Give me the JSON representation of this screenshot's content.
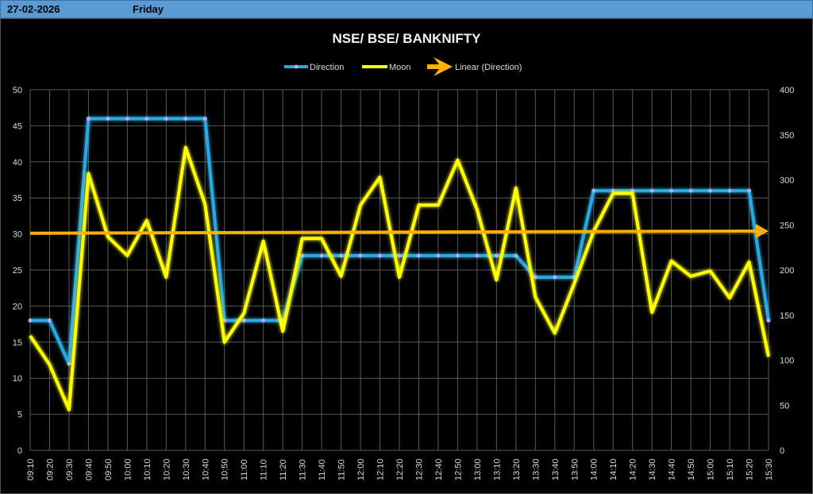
{
  "header": {
    "date": "27-02-2026",
    "day": "Friday"
  },
  "chart_data": {
    "type": "line",
    "title": "NSE/ BSE/ BANKNIFTY",
    "legend": [
      "Direction",
      "Moon",
      "Linear (Direction)"
    ],
    "legend_position": "top",
    "categories": [
      "09:10",
      "09:20",
      "09:30",
      "09:40",
      "09:50",
      "10:00",
      "10:10",
      "10:20",
      "10:30",
      "10:40",
      "10:50",
      "11:00",
      "11:10",
      "11:20",
      "11:30",
      "11:40",
      "11:50",
      "12:00",
      "12:10",
      "12:20",
      "12:30",
      "12:40",
      "12:50",
      "13:00",
      "13:10",
      "13:20",
      "13:30",
      "13:40",
      "13:50",
      "14:00",
      "14:10",
      "14:20",
      "14:30",
      "14:40",
      "14:50",
      "15:00",
      "15:10",
      "15:20",
      "15:30"
    ],
    "y_left": {
      "range": [
        0,
        50
      ],
      "ticks": [
        "0",
        "5",
        "10",
        "15",
        "20",
        "25",
        "30",
        "35",
        "40",
        "45",
        "50"
      ]
    },
    "y_right": {
      "range": [
        0,
        400
      ],
      "ticks": [
        "0",
        "50",
        "100",
        "150",
        "200",
        "250",
        "300",
        "350",
        "400"
      ]
    },
    "grid": true,
    "series": [
      {
        "name": "Direction",
        "axis": "left",
        "color": "#29a8e0",
        "values": [
          18,
          18,
          12,
          46,
          46,
          46,
          46,
          46,
          46,
          46,
          18,
          18,
          18,
          18,
          27,
          27,
          27,
          27,
          27,
          27,
          27,
          27,
          27,
          27,
          27,
          27,
          24,
          24,
          24,
          36,
          36,
          36,
          36,
          36,
          36,
          36,
          36,
          36,
          18
        ]
      },
      {
        "name": "Moon",
        "axis": "right",
        "color": "#ffff00",
        "values": [
          127,
          95,
          45,
          307,
          237,
          216,
          255,
          192,
          336,
          273,
          120,
          152,
          232,
          132,
          235,
          235,
          193,
          272,
          303,
          192,
          272,
          272,
          322,
          267,
          189,
          291,
          170,
          130,
          185,
          243,
          285,
          285,
          153,
          210,
          193,
          199,
          169,
          209,
          104
        ]
      },
      {
        "name": "Linear (Direction)",
        "axis": "left",
        "color": "#ffb000",
        "trend": [
          30.1,
          30.4
        ]
      }
    ]
  }
}
